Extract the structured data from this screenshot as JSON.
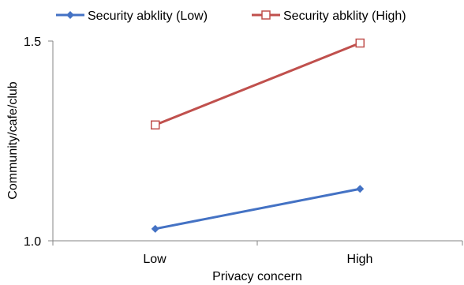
{
  "chart_data": {
    "type": "line",
    "categories": [
      "Low",
      "High"
    ],
    "series": [
      {
        "name": "Security abklity (Low)",
        "values": [
          1.03,
          1.13
        ],
        "color": "#4472C4",
        "marker": "diamond-filled"
      },
      {
        "name": "Security abklity (High)",
        "values": [
          1.29,
          1.495
        ],
        "color": "#C0504D",
        "marker": "square-open"
      }
    ],
    "xlabel": "Privacy concern",
    "ylabel": "Community/cafe/club",
    "ylim": [
      1.0,
      1.5
    ],
    "yticks": [
      "1.0",
      "1.5"
    ],
    "grid": false,
    "legend": "top"
  }
}
